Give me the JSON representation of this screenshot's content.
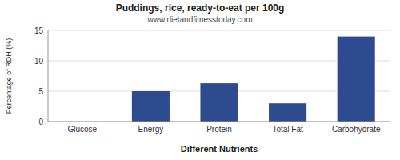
{
  "chart_data": {
    "type": "bar",
    "title": "Puddings, rice, ready-to-eat per 100g",
    "subtitle": "www.dietandfitnesstoday.com",
    "xlabel": "Different Nutrients",
    "ylabel": "Percentage of RDH (%)",
    "categories": [
      "Glucose",
      "Energy",
      "Protein",
      "Total Fat",
      "Carbohydrate"
    ],
    "values": [
      0,
      5.0,
      6.3,
      3.0,
      14.0
    ],
    "color": "#2e4b8f",
    "ylim": [
      0,
      15
    ],
    "yticks": [
      0,
      5,
      10,
      15
    ],
    "grid": true
  }
}
